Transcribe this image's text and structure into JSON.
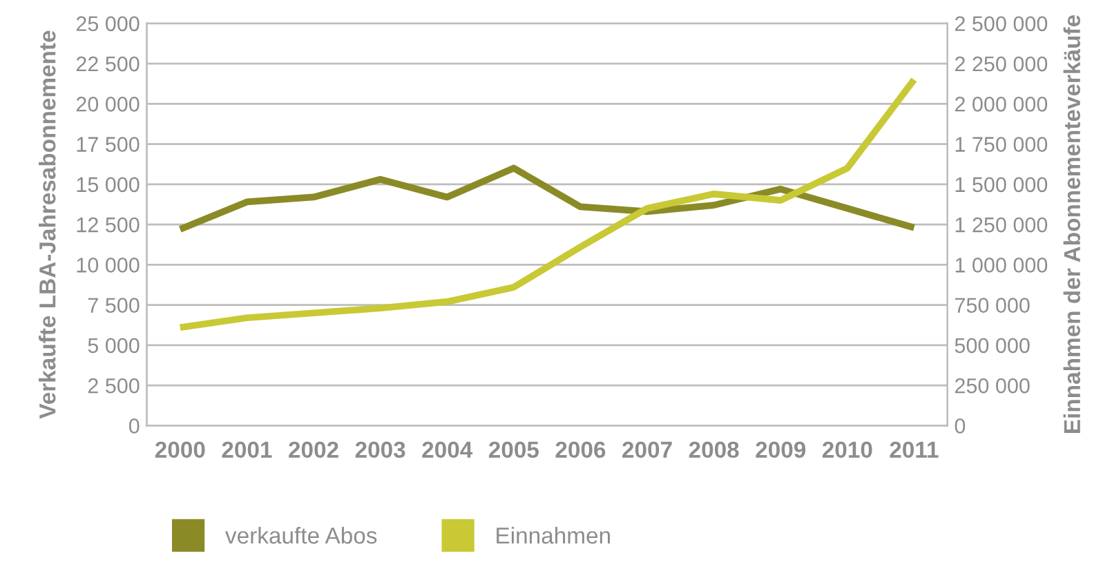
{
  "chart_data": {
    "type": "line",
    "categories": [
      "2000",
      "2001",
      "2002",
      "2003",
      "2004",
      "2005",
      "2006",
      "2007",
      "2008",
      "2009",
      "2010",
      "2011"
    ],
    "series": [
      {
        "name": "verkaufte Abos",
        "color": "#8a8b27",
        "values": [
          12200,
          13900,
          14200,
          15300,
          14200,
          16000,
          13600,
          13300,
          13700,
          14700,
          13500,
          12300
        ]
      },
      {
        "name": "Einnahmen",
        "color": "#c8c935",
        "axis": "y2",
        "values": [
          610000,
          670000,
          700000,
          730000,
          770000,
          860000,
          1110000,
          1350000,
          1440000,
          1400000,
          1600000,
          2150000
        ]
      }
    ],
    "ylabel": "Verkaufte LBA-Jahresabonnemente",
    "y2label": "Einnahmen der Abonnementeverkäufe",
    "ylim": [
      0,
      25000
    ],
    "yticks": [
      {
        "value": 0,
        "label": "0"
      },
      {
        "value": 2500,
        "label": "2 500"
      },
      {
        "value": 5000,
        "label": "5 000"
      },
      {
        "value": 7500,
        "label": "7 500"
      },
      {
        "value": 10000,
        "label": "10 000"
      },
      {
        "value": 12500,
        "label": "12 500"
      },
      {
        "value": 15000,
        "label": "15 000"
      },
      {
        "value": 17500,
        "label": "17 500"
      },
      {
        "value": 20000,
        "label": "20 000"
      },
      {
        "value": 22500,
        "label": "22 500"
      },
      {
        "value": 25000,
        "label": "25 000"
      }
    ],
    "y2lim": [
      0,
      2500000
    ],
    "y2ticks": [
      {
        "value": 0,
        "label": "0"
      },
      {
        "value": 250000,
        "label": "250 000"
      },
      {
        "value": 500000,
        "label": "500 000"
      },
      {
        "value": 750000,
        "label": "750 000"
      },
      {
        "value": 1000000,
        "label": "1 000 000"
      },
      {
        "value": 1250000,
        "label": "1 250 000"
      },
      {
        "value": 1500000,
        "label": "1 500 000"
      },
      {
        "value": 1750000,
        "label": "1 750 000"
      },
      {
        "value": 2000000,
        "label": "2 000 000"
      },
      {
        "value": 2250000,
        "label": "2 250 000"
      },
      {
        "value": 2500000,
        "label": "2 500 000"
      }
    ],
    "grid": true,
    "legend": "bottom",
    "marker": "none",
    "line_style": "solid"
  }
}
